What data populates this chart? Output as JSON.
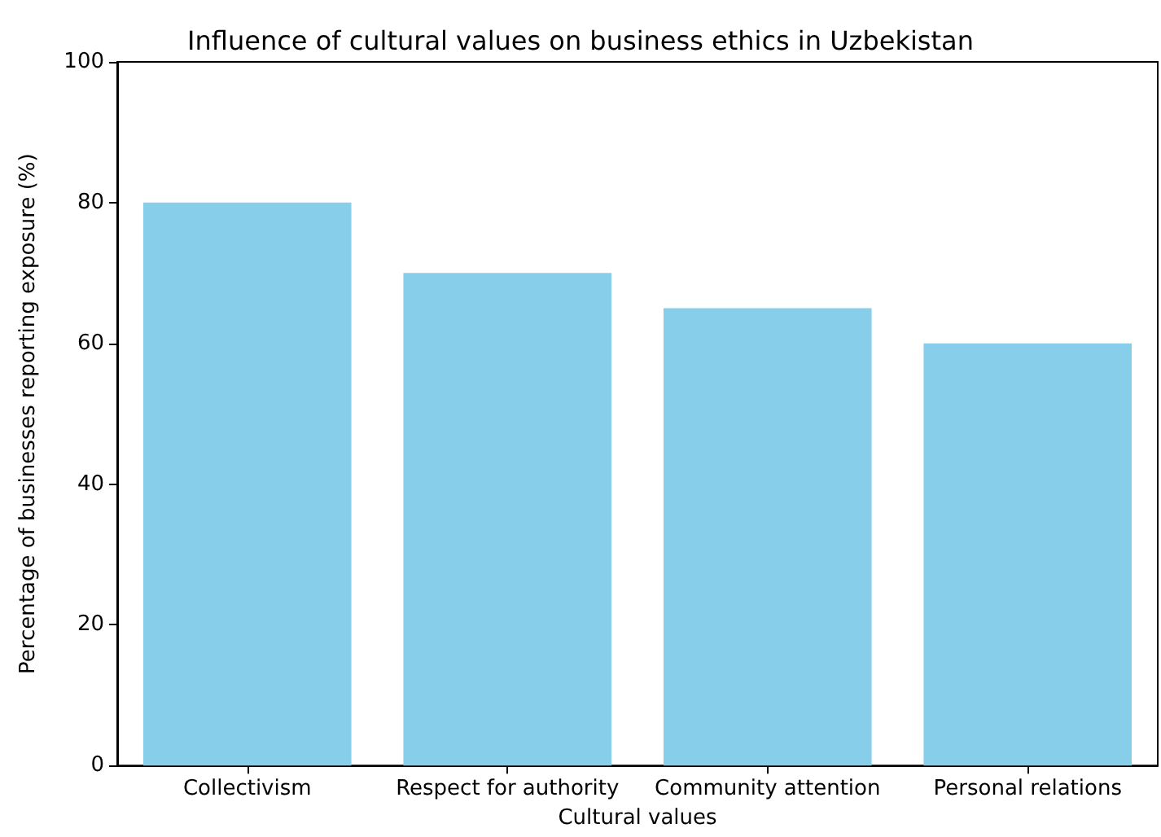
{
  "chart_data": {
    "type": "bar",
    "title": "Influence of cultural values on business ethics in Uzbekistan",
    "xlabel": "Cultural values",
    "ylabel": "Percentage of businesses reporting exposure (%)",
    "categories": [
      "Collectivism",
      "Respect for authority",
      "Community attention",
      "Personal relations"
    ],
    "values": [
      80,
      70,
      65,
      60
    ],
    "color": "#87ceeb",
    "ylim": [
      0,
      100
    ],
    "yticks": [
      0,
      20,
      40,
      60,
      80,
      100
    ],
    "grid": false
  }
}
